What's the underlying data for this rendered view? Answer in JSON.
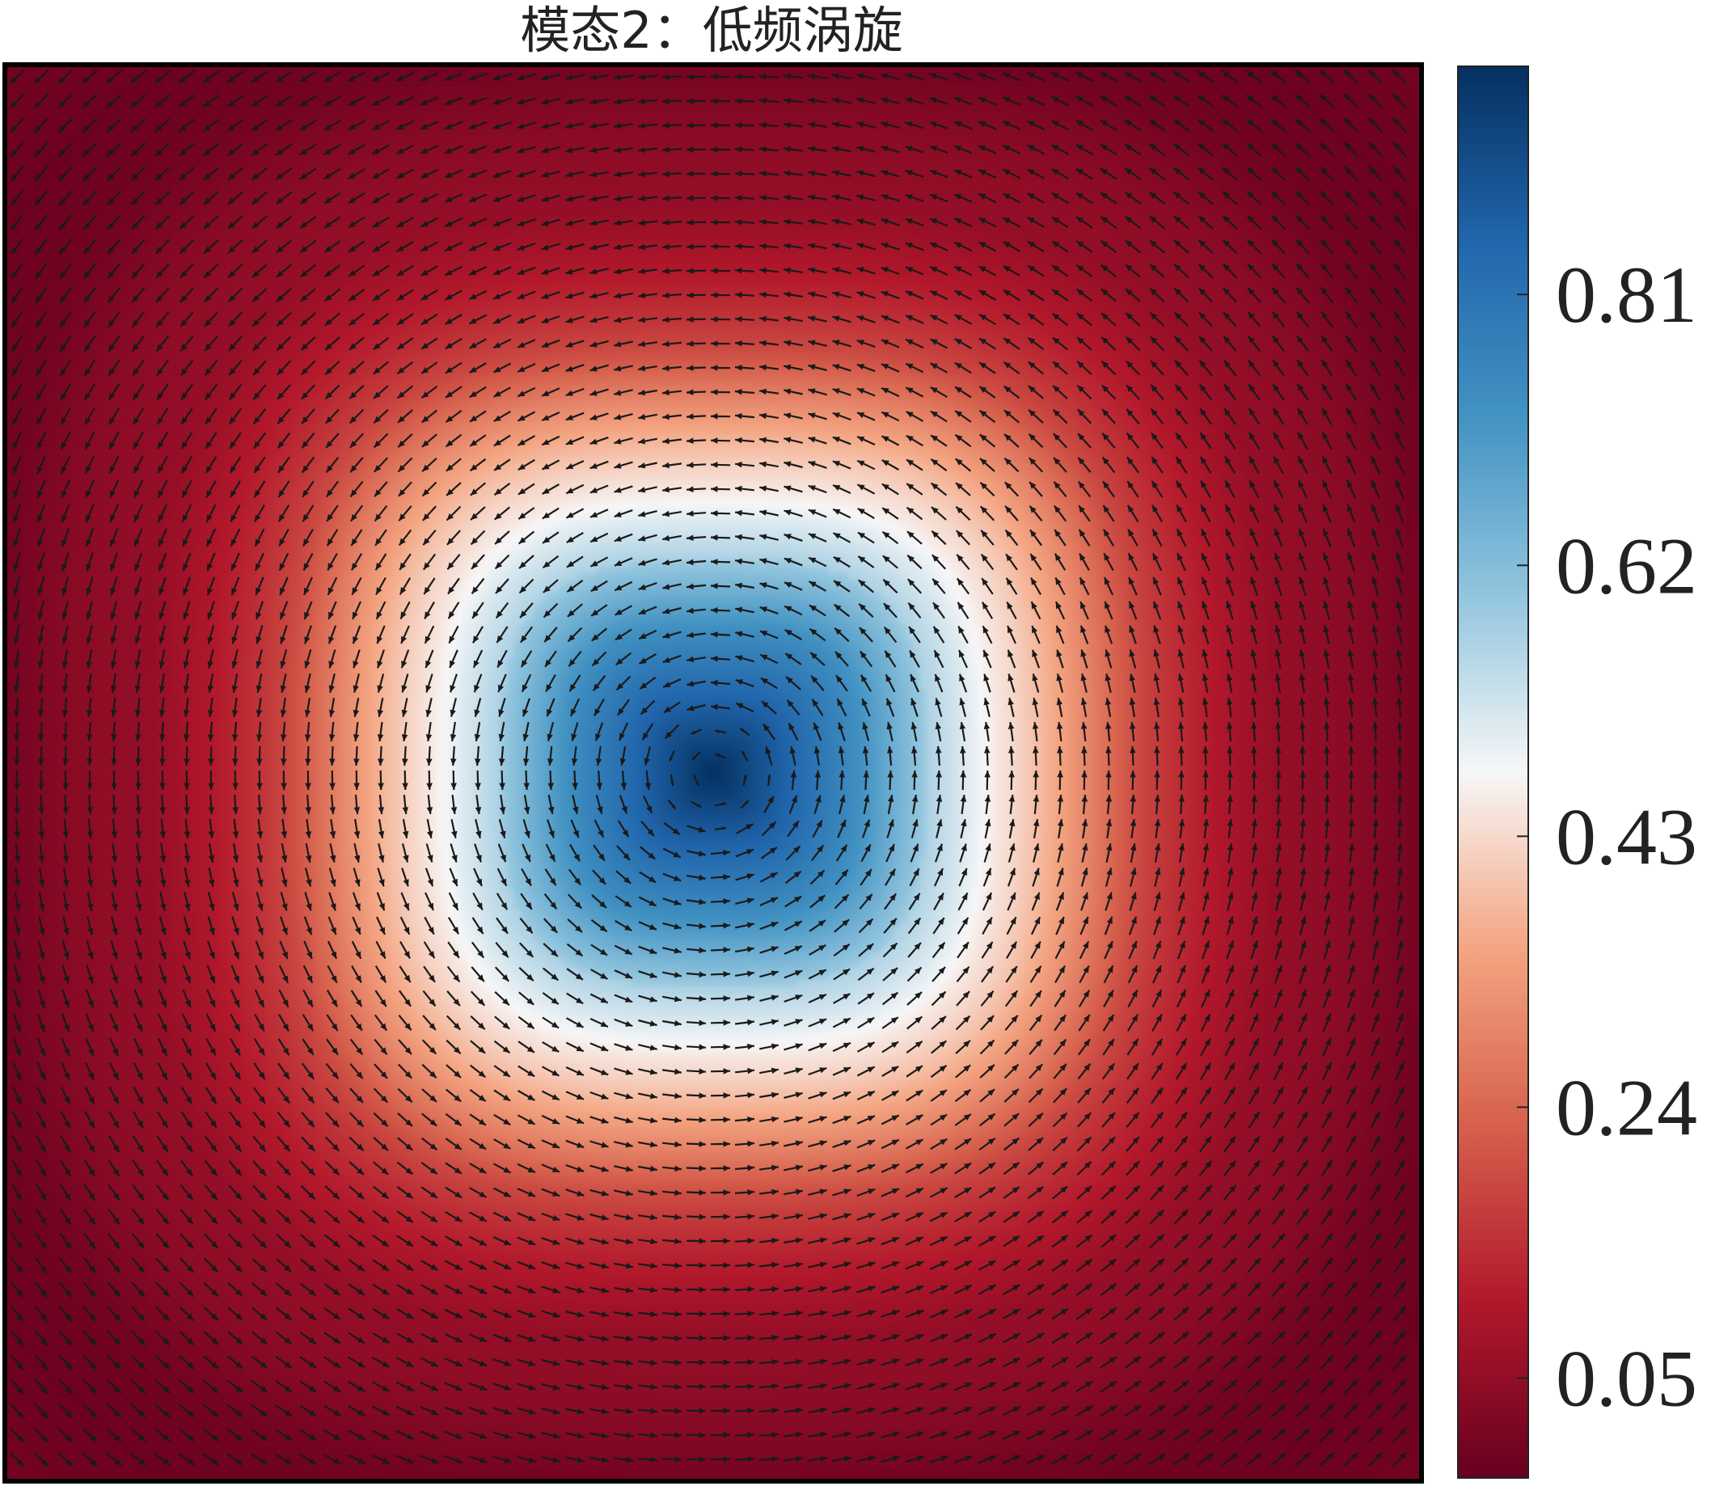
{
  "chart_data": {
    "type": "heatmap",
    "title": "模态2：低频涡旋",
    "xlabel": "",
    "ylabel": "",
    "field": {
      "description_kind": "vortex-mode",
      "value_at_center": 0.97,
      "value_at_edges": 0.0,
      "ring_profile": [
        {
          "r": 0.0,
          "value": 0.97
        },
        {
          "r": 0.2,
          "value": 0.74
        },
        {
          "r": 0.4,
          "value": 0.43
        },
        {
          "r": 0.6,
          "value": 0.2
        },
        {
          "r": 0.8,
          "value": 0.05
        },
        {
          "r": 1.0,
          "value": 0.0
        }
      ],
      "vectors": "counter-clockwise rotation about center"
    },
    "colorbar": {
      "colormap": "RdBu",
      "range": [
        -0.02,
        0.97
      ],
      "ticks": [
        0.05,
        0.24,
        0.43,
        0.62,
        0.81
      ],
      "tick_labels": [
        "0.05",
        "0.24",
        "0.43",
        "0.62",
        "0.81"
      ]
    },
    "colors": {
      "low": "#67001f",
      "mid": "#f7f7f7",
      "high": "#053061",
      "arrow": "#1a1a1a"
    }
  }
}
